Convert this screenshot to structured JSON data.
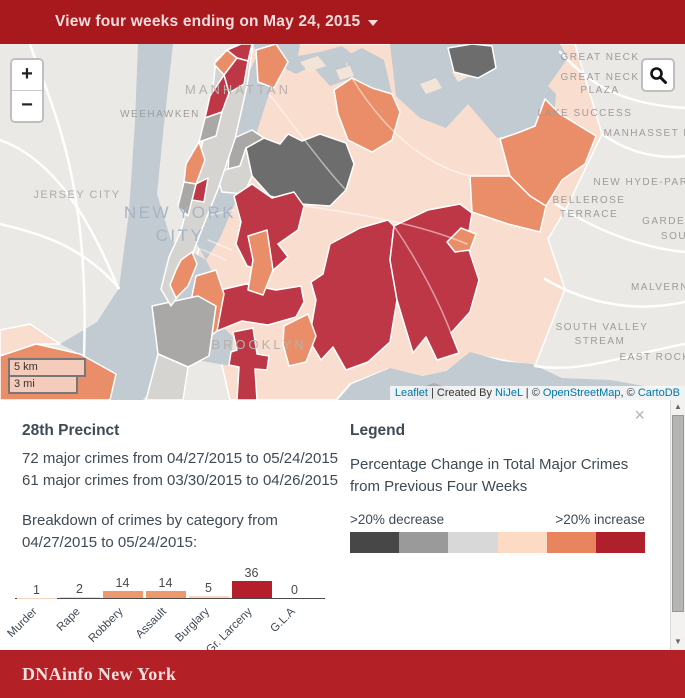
{
  "theme": {
    "header-bg": "#a8191e",
    "footer-bg": "#b32025"
  },
  "header": {
    "title": "View four weeks ending on May 24, 2015"
  },
  "map": {
    "controls": {
      "zoom_in": "+",
      "zoom_out": "−"
    },
    "scale": {
      "km": "5 km",
      "mi": "3 mi"
    },
    "attribution": {
      "leaflet": "Leaflet",
      "sep1": " | Created By ",
      "nijel": "NiJeL",
      "sep2": " | © ",
      "osm": "OpenStreetMap",
      "sep3": ", © ",
      "cartodb": "CartoDB"
    },
    "labels": {
      "jersey_city": "JERSEY CITY",
      "weehawken": "WEEHAWKEN",
      "manhattan": "MANHATTAN",
      "nyc_line1": "NEW YORK",
      "nyc_line2": "CITY",
      "brooklyn": "BROOKLYN",
      "great_neck": "GREAT NECK",
      "great_neck_plaza_1": "GREAT NECK",
      "great_neck_plaza_2": "PLAZA",
      "lake_success": "LAKE SUCCESS",
      "manhasset": "MANHASSET HI",
      "new_hyde_park": "NEW HYDE-PARK",
      "bellerose_1": "BELLEROSE",
      "bellerose_2": "TERRACE",
      "garden_1": "GARDEN",
      "garden_2": "SOU",
      "malverne": "MALVERN",
      "south_valley_1": "SOUTH VALLEY",
      "south_valley_2": "STREAM",
      "east_rockaway": "EAST ROCK"
    }
  },
  "panel": {
    "close_icon": "×",
    "precinct_title": "28th Precinct",
    "crime_line_1": "72 major crimes from 04/27/2015 to 05/24/2015",
    "crime_line_2": "61 major crimes from 03/30/2015 to 04/26/2015",
    "breakdown_text": "Breakdown of crimes by category from 04/27/2015 to 05/24/2015:"
  },
  "chart_data": {
    "type": "bar",
    "title": "Breakdown of crimes by category from 04/27/2015 to 05/24/2015",
    "categories": [
      "Murder",
      "Rape",
      "Robbery",
      "Assault",
      "Burglary",
      "Gr. Larceny",
      "G.L.A"
    ],
    "values": [
      1,
      2,
      14,
      14,
      5,
      36,
      0
    ],
    "bar_colors": [
      "#f9d6bf",
      "#f9d6bf",
      "#ec9a6d",
      "#ec9a6d",
      "#f9d6bf",
      "#b51f2c",
      "#f9d6bf"
    ],
    "xlabel": "",
    "ylabel": "",
    "ylim": [
      0,
      40
    ],
    "grid": false,
    "value_labels_shown": true
  },
  "legend": {
    "title": "Legend",
    "description": "Percentage Change in Total Major Crimes from Previous Four Weeks",
    "min_label": ">20% decrease",
    "max_label": ">20% increase",
    "colors": [
      "#474747",
      "#9a9a9a",
      "#d8d8d8",
      "#fcdac3",
      "#e8855f",
      "#b01f2c"
    ]
  },
  "scrollbar": {
    "up_icon": "▲",
    "down_icon": "▼"
  },
  "footer": {
    "brand": "DNAinfo New York"
  }
}
